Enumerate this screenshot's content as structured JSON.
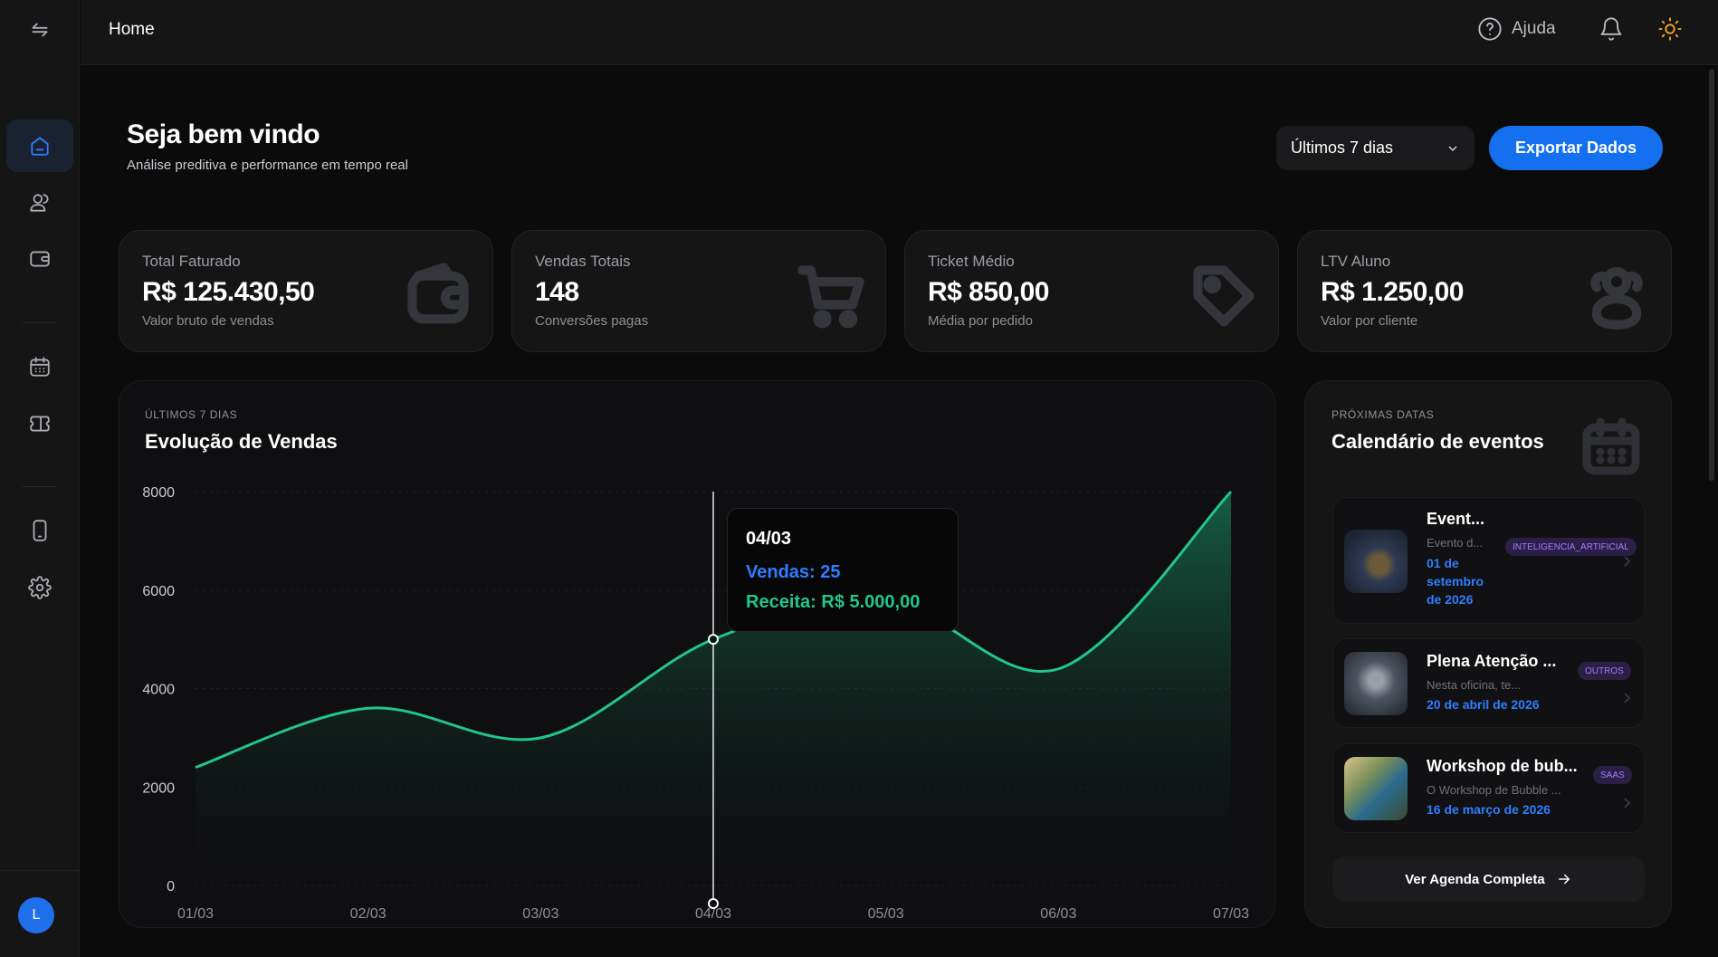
{
  "topbar": {
    "title": "Home",
    "help_label": "Ajuda"
  },
  "sidebar": {
    "avatar_initial": "L"
  },
  "header": {
    "title": "Seja bem vindo",
    "subtitle": "Análise preditiva e performance em tempo real",
    "period_value": "Últimos 7 dias",
    "export_label": "Exportar Dados"
  },
  "kpis": [
    {
      "label": "Total Faturado",
      "value": "R$ 125.430,50",
      "sub": "Valor bruto de vendas",
      "icon": "wallet-icon"
    },
    {
      "label": "Vendas Totais",
      "value": "148",
      "sub": "Conversões pagas",
      "icon": "cart-icon"
    },
    {
      "label": "Ticket Médio",
      "value": "R$ 850,00",
      "sub": "Média por pedido",
      "icon": "tag-icon"
    },
    {
      "label": "LTV Aluno",
      "value": "R$ 1.250,00",
      "sub": "Valor por cliente",
      "icon": "users-icon"
    }
  ],
  "sales_chart": {
    "eyebrow": "ÚLTIMOS 7 DIAS",
    "title": "Evolução de Vendas",
    "tooltip": {
      "date": "04/03",
      "sales": "Vendas: 25",
      "revenue": "Receita: R$ 5.000,00"
    }
  },
  "chart_data": {
    "type": "area",
    "title": "Evolução de Vendas",
    "x": [
      "01/03",
      "02/03",
      "03/03",
      "04/03",
      "05/03",
      "06/03",
      "07/03"
    ],
    "series": [
      {
        "values": [
          2400,
          3600,
          3000,
          5000,
          5800,
          4400,
          8000
        ]
      }
    ],
    "ylim": [
      0,
      8000
    ],
    "yticks": [
      0,
      2000,
      4000,
      6000,
      8000
    ],
    "grid": true,
    "line_color": "#22c58b",
    "highlight_index": 3
  },
  "calendar": {
    "eyebrow": "PRÓXIMAS DATAS",
    "title": "Calendário de eventos",
    "events": [
      {
        "title": "Event...",
        "desc": "Evento d...",
        "date": "01 de setembro de 2026",
        "tag": "INTELIGENCIA_ARTIFICIAL"
      },
      {
        "title": "Plena Atenção ...",
        "desc": "Nesta oficina, te...",
        "date": "20 de abril de 2026",
        "tag": "OUTROS"
      },
      {
        "title": "Workshop de bub...",
        "desc": "O Workshop de Bubble ...",
        "date": "16 de março de 2026",
        "tag": "SAAS"
      }
    ],
    "more_label": "Ver Agenda Completa"
  },
  "colors": {
    "accent": "#1570ef",
    "link": "#2f7dff",
    "positive": "#22c58b",
    "tag_bg": "#2a1f45",
    "tag_text": "#a57bff"
  }
}
